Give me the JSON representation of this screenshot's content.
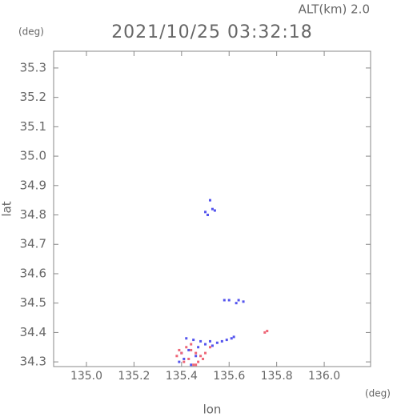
{
  "chart_data": {
    "type": "scatter",
    "alt_label": "ALT(km) 2.0",
    "title": "2021/10/25 03:32:18",
    "y_unit": "(deg)",
    "x_unit": "(deg)",
    "x_label": "lon",
    "y_label": "lat",
    "xlim": [
      134.862,
      136.195
    ],
    "ylim": [
      34.284,
      35.357
    ],
    "xticks": [
      {
        "value": 135,
        "label": "135.0"
      },
      135.2,
      135.4,
      135.6,
      135.8,
      {
        "value": 136,
        "label": "136.0"
      }
    ],
    "yticks": [
      34.3,
      34.4,
      34.5,
      34.6,
      34.7,
      34.8,
      34.9,
      {
        "value": 35,
        "label": "35.0"
      },
      35.1,
      35.2,
      35.3
    ],
    "series": [
      {
        "color": "#5555ee",
        "x": [
          135.52,
          135.5,
          135.51,
          135.53,
          135.54,
          135.58,
          135.6,
          135.63,
          135.64,
          135.66,
          135.42,
          135.45,
          135.48,
          135.5,
          135.52,
          135.55,
          135.57,
          135.59,
          135.61,
          135.62,
          135.4,
          135.43,
          135.46,
          135.39,
          135.44,
          135.41,
          135.47,
          135.53
        ],
        "y": [
          34.85,
          34.81,
          34.8,
          34.82,
          34.815,
          34.51,
          34.51,
          34.5,
          34.51,
          34.505,
          34.38,
          34.375,
          34.37,
          34.36,
          34.37,
          34.365,
          34.37,
          34.375,
          34.38,
          34.385,
          34.33,
          34.34,
          34.32,
          34.3,
          34.29,
          34.31,
          34.35,
          34.355
        ]
      },
      {
        "color": "#ee6677",
        "x": [
          135.75,
          135.76,
          135.38,
          135.4,
          135.42,
          135.44,
          135.46,
          135.48,
          135.5,
          135.41,
          135.43,
          135.45,
          135.47,
          135.49,
          135.39,
          135.44,
          135.52,
          135.46
        ],
        "y": [
          34.4,
          34.405,
          34.32,
          34.33,
          34.35,
          34.34,
          34.33,
          34.32,
          34.33,
          34.3,
          34.31,
          34.29,
          34.3,
          34.31,
          34.34,
          34.36,
          34.35,
          34.29
        ]
      }
    ]
  }
}
